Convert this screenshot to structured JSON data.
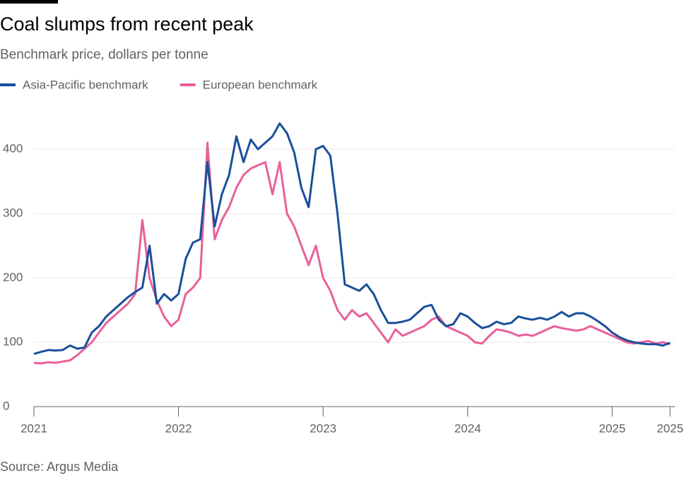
{
  "chart_data": {
    "type": "line",
    "title": "Coal slumps from recent peak",
    "subtitle": "Benchmark price, dollars per tonne",
    "source": "Source: Argus Media",
    "legend": "top-left",
    "grid": true,
    "xlim": [
      2021,
      2025.4
    ],
    "xticks": [
      2021,
      2022,
      2023,
      2024,
      2025,
      {
        "value": 2025.4,
        "label": "2025"
      }
    ],
    "ylim": [
      0,
      450
    ],
    "yticks": [
      0,
      100,
      200,
      300,
      400
    ],
    "x": [
      2021.0,
      2021.05,
      2021.1,
      2021.15,
      2021.2,
      2021.25,
      2021.3,
      2021.35,
      2021.4,
      2021.45,
      2021.5,
      2021.55,
      2021.6,
      2021.65,
      2021.7,
      2021.75,
      2021.8,
      2021.85,
      2021.9,
      2021.95,
      2022.0,
      2022.05,
      2022.1,
      2022.15,
      2022.2,
      2022.25,
      2022.3,
      2022.35,
      2022.4,
      2022.45,
      2022.5,
      2022.55,
      2022.6,
      2022.65,
      2022.7,
      2022.75,
      2022.8,
      2022.85,
      2022.9,
      2022.95,
      2023.0,
      2023.05,
      2023.1,
      2023.15,
      2023.2,
      2023.25,
      2023.3,
      2023.35,
      2023.4,
      2023.45,
      2023.5,
      2023.55,
      2023.6,
      2023.65,
      2023.7,
      2023.75,
      2023.8,
      2023.85,
      2023.9,
      2023.95,
      2024.0,
      2024.05,
      2024.1,
      2024.15,
      2024.2,
      2024.25,
      2024.3,
      2024.35,
      2024.4,
      2024.45,
      2024.5,
      2024.55,
      2024.6,
      2024.65,
      2024.7,
      2024.75,
      2024.8,
      2024.85,
      2024.9,
      2024.95,
      2025.0,
      2025.05,
      2025.1,
      2025.15,
      2025.2,
      2025.25,
      2025.3,
      2025.35,
      2025.4
    ],
    "series": [
      {
        "name": "Asia-Pacific benchmark",
        "color": "#1a4f9c",
        "values": [
          82,
          85,
          88,
          87,
          88,
          95,
          90,
          92,
          115,
          125,
          140,
          150,
          160,
          170,
          178,
          185,
          250,
          160,
          175,
          165,
          175,
          230,
          255,
          260,
          380,
          280,
          330,
          360,
          420,
          380,
          415,
          400,
          410,
          420,
          440,
          425,
          395,
          340,
          310,
          400,
          405,
          390,
          300,
          190,
          185,
          180,
          190,
          175,
          150,
          130,
          130,
          132,
          135,
          145,
          155,
          158,
          135,
          125,
          128,
          145,
          140,
          130,
          122,
          125,
          132,
          128,
          130,
          140,
          137,
          135,
          138,
          135,
          140,
          147,
          140,
          145,
          145,
          140,
          133,
          125,
          115,
          108,
          103,
          100,
          98,
          97,
          97,
          95,
          99
        ]
      },
      {
        "name": "European benchmark",
        "color": "#e8609a",
        "values": [
          68,
          67,
          69,
          68,
          70,
          72,
          80,
          90,
          100,
          115,
          130,
          140,
          150,
          160,
          175,
          290,
          200,
          165,
          140,
          125,
          135,
          175,
          185,
          200,
          410,
          260,
          290,
          310,
          340,
          360,
          370,
          375,
          380,
          330,
          380,
          300,
          280,
          250,
          220,
          250,
          200,
          180,
          150,
          135,
          150,
          140,
          145,
          130,
          115,
          100,
          120,
          110,
          115,
          120,
          125,
          135,
          140,
          125,
          120,
          115,
          110,
          100,
          98,
          110,
          120,
          118,
          115,
          110,
          112,
          110,
          115,
          120,
          125,
          122,
          120,
          118,
          120,
          125,
          120,
          115,
          110,
          105,
          100,
          98,
          100,
          102,
          98,
          100,
          97
        ]
      }
    ]
  }
}
